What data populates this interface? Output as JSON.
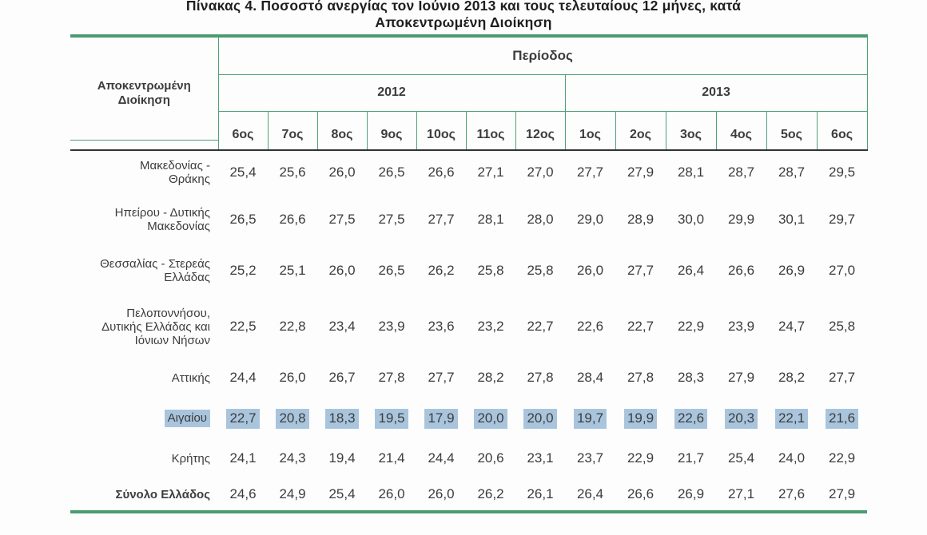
{
  "title": {
    "line1": "Πίνακας 4. Ποσοστό ανεργίας τον Ιούνιο 2013 και τους τελευταίους 12 μήνες, κατά",
    "line2": "Αποκεντρωμένη Διοίκηση"
  },
  "table": {
    "region_header": "Αποκεντρωμένη Διοίκηση",
    "period_header": "Περίοδος",
    "year_groups": [
      {
        "label": "2012",
        "months": [
          "6ος",
          "7ος",
          "8ος",
          "9ος",
          "10ος",
          "11ος",
          "12ος"
        ]
      },
      {
        "label": "2013",
        "months": [
          "1ος",
          "2ος",
          "3ος",
          "4ος",
          "5ος",
          "6ος"
        ]
      }
    ],
    "rows": [
      {
        "region": "Μακεδονίας - Θράκης",
        "highlight": false,
        "bold": false,
        "values": [
          "25,4",
          "25,6",
          "26,0",
          "26,5",
          "26,6",
          "27,1",
          "27,0",
          "27,7",
          "27,9",
          "28,1",
          "28,7",
          "28,7",
          "29,5"
        ]
      },
      {
        "region": "Ηπείρου - Δυτικής Μακεδονίας",
        "highlight": false,
        "bold": false,
        "values": [
          "26,5",
          "26,6",
          "27,5",
          "27,5",
          "27,7",
          "28,1",
          "28,0",
          "29,0",
          "28,9",
          "30,0",
          "29,9",
          "30,1",
          "29,7"
        ]
      },
      {
        "region": "Θεσσαλίας - Στερεάς Ελλάδας",
        "highlight": false,
        "bold": false,
        "values": [
          "25,2",
          "25,1",
          "26,0",
          "26,5",
          "26,2",
          "25,8",
          "25,8",
          "26,0",
          "27,7",
          "26,4",
          "26,6",
          "26,9",
          "27,0"
        ]
      },
      {
        "region": "Πελοποννήσου, Δυτικής Ελλάδας και Ιόνιων Νήσων",
        "highlight": false,
        "bold": false,
        "values": [
          "22,5",
          "22,8",
          "23,4",
          "23,9",
          "23,6",
          "23,2",
          "22,7",
          "22,6",
          "22,7",
          "22,9",
          "23,9",
          "24,7",
          "25,8"
        ]
      },
      {
        "region": "Αττικής",
        "highlight": false,
        "bold": false,
        "values": [
          "24,4",
          "26,0",
          "26,7",
          "27,8",
          "27,7",
          "28,2",
          "27,8",
          "28,4",
          "27,8",
          "28,3",
          "27,9",
          "28,2",
          "27,7"
        ]
      },
      {
        "region": "Αιγαίου",
        "highlight": true,
        "bold": false,
        "values": [
          "22,7",
          "20,8",
          "18,3",
          "19,5",
          "17,9",
          "20,0",
          "20,0",
          "19,7",
          "19,9",
          "22,6",
          "20,3",
          "22,1",
          "21,6"
        ]
      },
      {
        "region": "Κρήτης",
        "highlight": false,
        "bold": false,
        "values": [
          "24,1",
          "24,3",
          "19,4",
          "21,4",
          "24,4",
          "20,6",
          "23,1",
          "23,7",
          "22,9",
          "21,7",
          "25,4",
          "24,0",
          "22,9"
        ]
      },
      {
        "region": "Σύνολο Ελλάδος",
        "highlight": false,
        "bold": true,
        "values": [
          "24,6",
          "24,9",
          "25,4",
          "26,0",
          "26,0",
          "26,2",
          "26,1",
          "26,4",
          "26,6",
          "26,9",
          "27,1",
          "27,6",
          "27,9"
        ]
      }
    ]
  },
  "colors": {
    "rule_green": "#4a9b70",
    "border_green": "#4fa178",
    "header_rule_dark": "#333333",
    "highlight_blue": "#a9c5dd",
    "text": "#3c3c3c"
  }
}
